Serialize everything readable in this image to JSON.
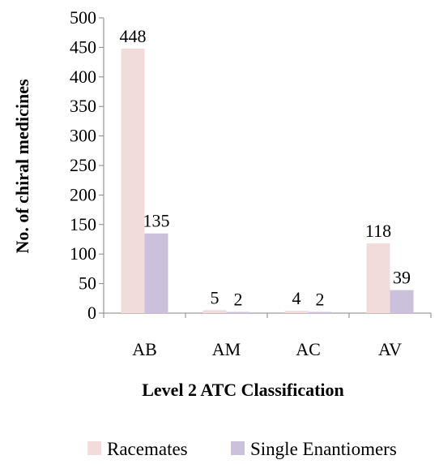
{
  "chart_data": {
    "type": "bar",
    "title": "",
    "xlabel": "Level 2 ATC Classification",
    "ylabel": "No.  of chiral medicines",
    "categories": [
      "AB",
      "AM",
      "AC",
      "AV"
    ],
    "series": [
      {
        "name": "Racemates",
        "values": [
          448,
          5,
          4,
          118
        ],
        "color": "#f2dcdb"
      },
      {
        "name": "Single Enantiomers",
        "values": [
          135,
          2,
          2,
          39
        ],
        "color": "#ccc1da"
      }
    ],
    "ylim": [
      0,
      500
    ],
    "yticks": [
      0,
      50,
      100,
      150,
      200,
      250,
      300,
      350,
      400,
      450,
      500
    ],
    "grid": false,
    "legend_position": "bottom"
  }
}
